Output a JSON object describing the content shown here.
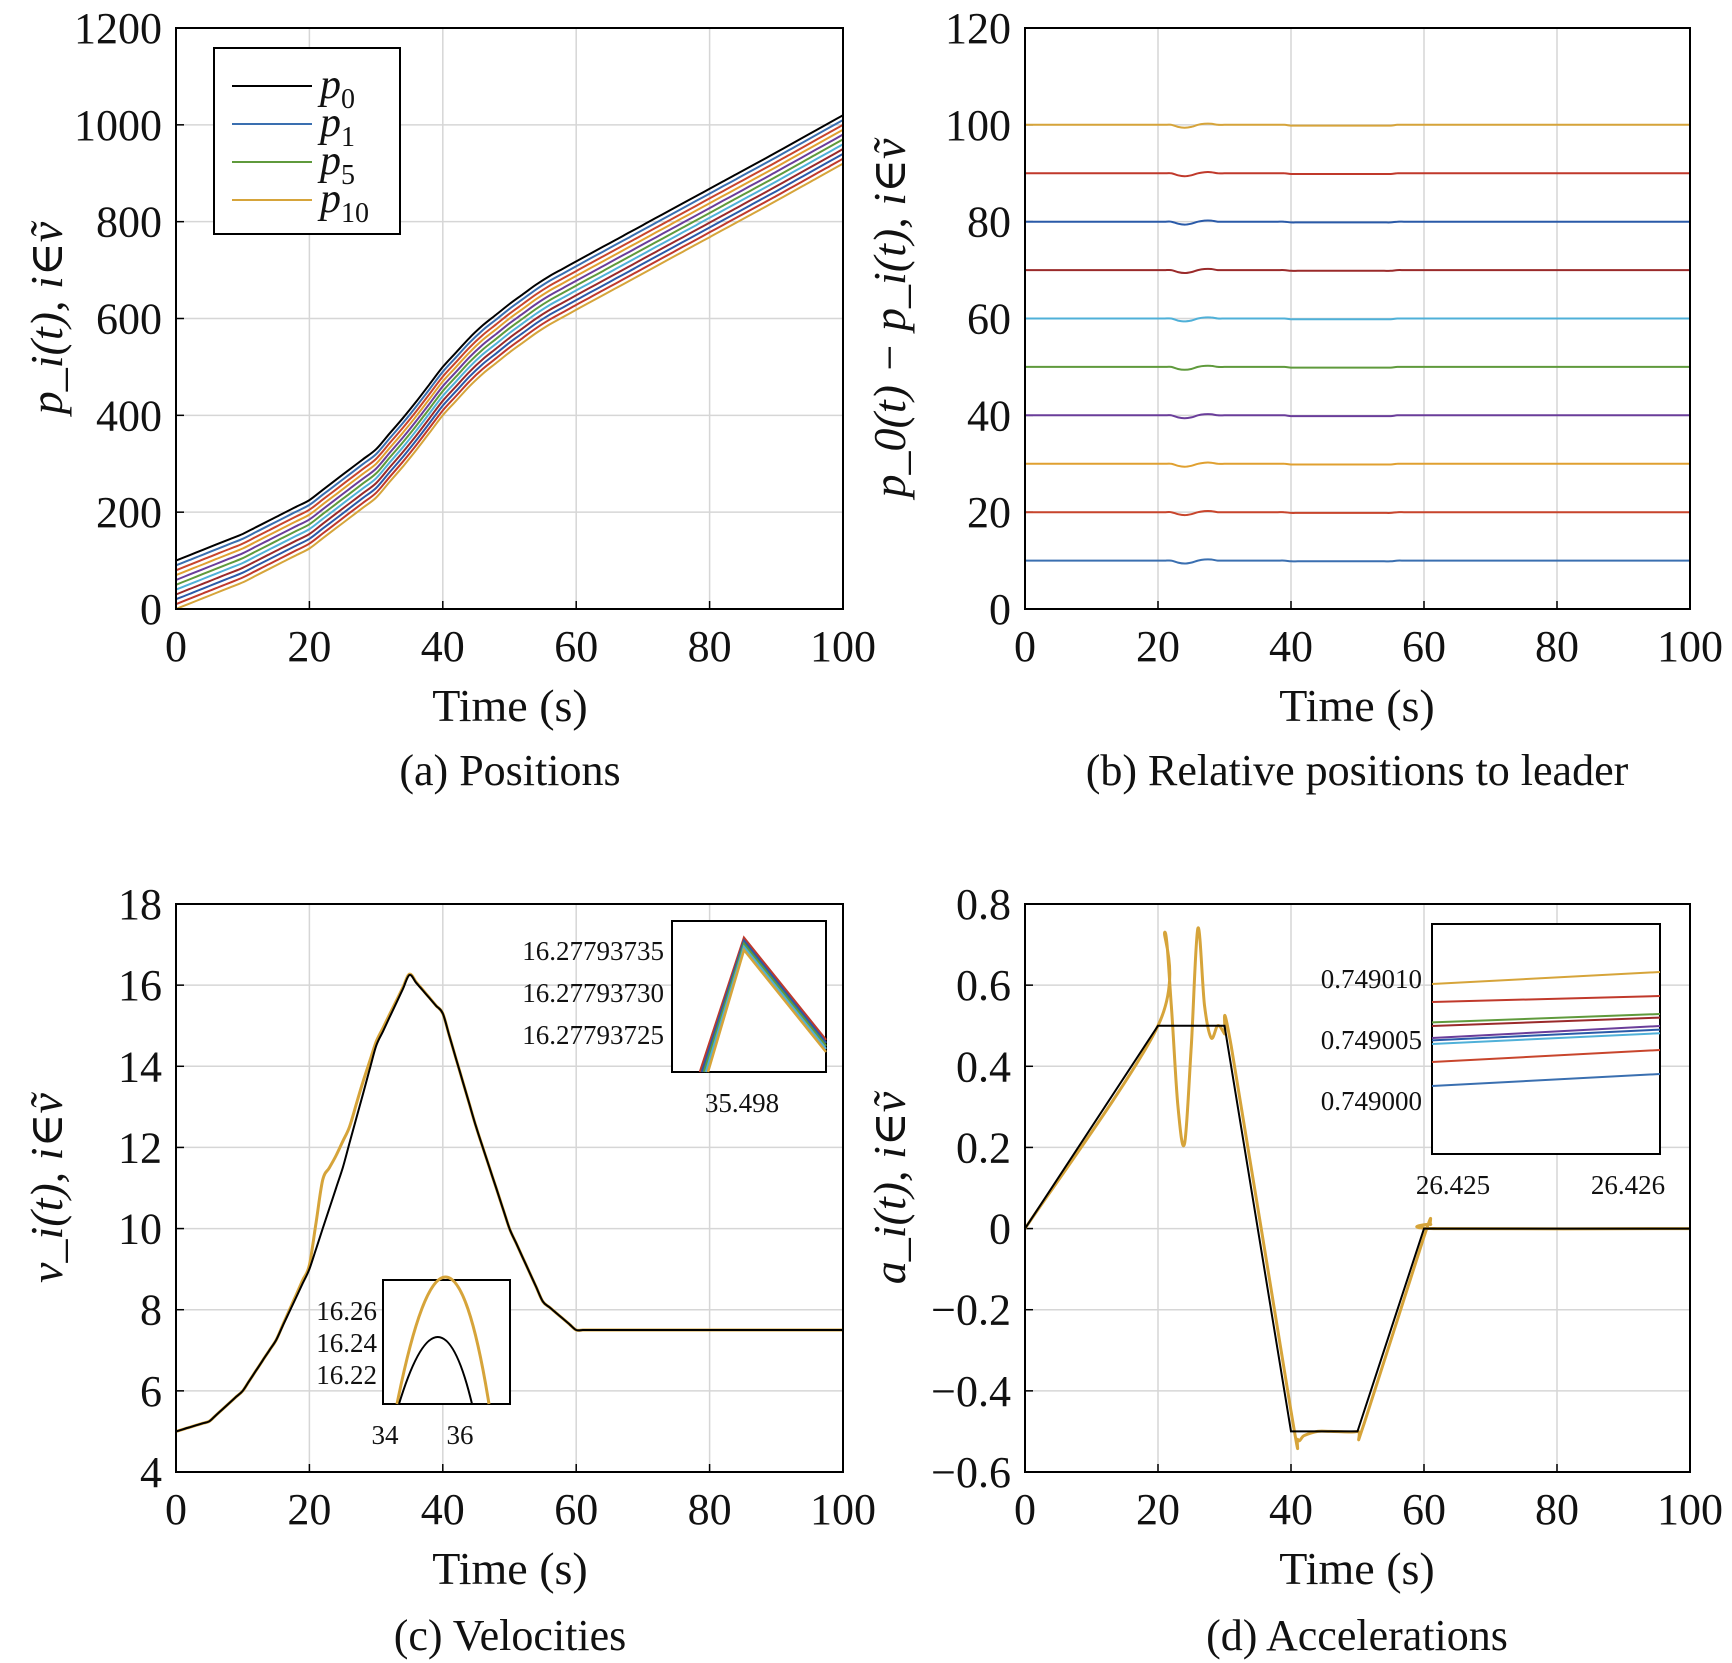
{
  "chart_data": [
    {
      "type": "line",
      "caption": "(a) Positions",
      "xlabel": "Time (s)",
      "ylabel": "p_i(t), i∈ṽ",
      "xlim": [
        0,
        100
      ],
      "ylim": [
        0,
        1200
      ],
      "xticks": [
        "0",
        "20",
        "40",
        "60",
        "80",
        "100"
      ],
      "yticks": [
        "0",
        "200",
        "400",
        "600",
        "800",
        "1000",
        "1200"
      ],
      "grid": true,
      "legend": {
        "position": "top-left",
        "entries": [
          {
            "base": "p",
            "sub": "0",
            "color": "#000000"
          },
          {
            "base": "p",
            "sub": "1",
            "color": "#3a6fb0"
          },
          {
            "base": "p",
            "sub": "5",
            "color": "#5f9a3c"
          },
          {
            "base": "p",
            "sub": "10",
            "color": "#d6a43a"
          }
        ]
      },
      "leader_x": [
        0,
        10,
        20,
        30,
        35,
        40,
        45,
        50,
        55,
        60,
        70,
        80,
        90,
        100
      ],
      "leader_y": [
        100,
        155,
        225,
        330,
        410,
        500,
        575,
        630,
        680,
        718,
        793,
        868,
        943,
        1020
      ],
      "series": [
        {
          "offset": 0,
          "color": "#000000"
        },
        {
          "offset": 10,
          "color": "#3a6fb0"
        },
        {
          "offset": 20,
          "color": "#c8452c"
        },
        {
          "offset": 30,
          "color": "#e0a030"
        },
        {
          "offset": 40,
          "color": "#6a3d9a"
        },
        {
          "offset": 50,
          "color": "#5f9a3c"
        },
        {
          "offset": 60,
          "color": "#4fb0d8"
        },
        {
          "offset": 70,
          "color": "#9a2a2a"
        },
        {
          "offset": 80,
          "color": "#2a5aa8"
        },
        {
          "offset": 90,
          "color": "#c0392b"
        },
        {
          "offset": 100,
          "color": "#d6a43a"
        }
      ]
    },
    {
      "type": "line",
      "caption": "(b) Relative positions to leader",
      "xlabel": "Time (s)",
      "ylabel": "p_0(t) − p_i(t), i∈ṽ",
      "xlim": [
        0,
        100
      ],
      "ylim": [
        0,
        120
      ],
      "xticks": [
        "0",
        "20",
        "40",
        "60",
        "80",
        "100"
      ],
      "yticks": [
        "0",
        "20",
        "40",
        "60",
        "80",
        "100",
        "120"
      ],
      "grid": true,
      "series": [
        {
          "value": 10,
          "color": "#3a6fb0"
        },
        {
          "value": 20,
          "color": "#c8452c"
        },
        {
          "value": 30,
          "color": "#e0a030"
        },
        {
          "value": 40,
          "color": "#6a3d9a"
        },
        {
          "value": 50,
          "color": "#5f9a3c"
        },
        {
          "value": 60,
          "color": "#4fb0d8"
        },
        {
          "value": 70,
          "color": "#9a2a2a"
        },
        {
          "value": 80,
          "color": "#2a5aa8"
        },
        {
          "value": 90,
          "color": "#c0392b"
        },
        {
          "value": 100,
          "color": "#d6a43a"
        }
      ]
    },
    {
      "type": "line",
      "caption": "(c) Velocities",
      "xlabel": "Time (s)",
      "ylabel": "v_i(t), i∈ṽ",
      "xlim": [
        0,
        100
      ],
      "ylim": [
        4,
        18
      ],
      "xticks": [
        "0",
        "20",
        "40",
        "60",
        "80",
        "100"
      ],
      "yticks": [
        "4",
        "6",
        "8",
        "10",
        "12",
        "14",
        "16",
        "18"
      ],
      "grid": true,
      "leader": {
        "x": [
          0,
          5,
          10,
          15,
          20,
          25,
          30,
          35,
          40,
          45,
          50,
          55,
          60,
          70,
          80,
          90,
          100
        ],
        "y": [
          5,
          5.25,
          6,
          7.25,
          9,
          11.5,
          14.5,
          16.25,
          15.3,
          12.5,
          10,
          8.2,
          7.5,
          7.5,
          7.5,
          7.5,
          7.5
        ],
        "color": "#000000"
      },
      "follower": {
        "x": [
          0,
          5,
          10,
          15,
          20,
          22,
          24,
          26,
          28,
          30,
          35,
          40,
          45,
          50,
          55,
          60,
          70,
          80,
          90,
          100
        ],
        "y": [
          5,
          5.25,
          6,
          7.25,
          9.1,
          11.2,
          11.8,
          12.5,
          13.6,
          14.6,
          16.27,
          15.3,
          12.5,
          10,
          8.2,
          7.5,
          7.5,
          7.5,
          7.5,
          7.5
        ],
        "color": "#d6a43a"
      },
      "insets": [
        {
          "name": "zoom-peak-top",
          "xticks": [
            "35.498"
          ],
          "yticks": [
            "16.27793735",
            "16.27793730",
            "16.27793725"
          ],
          "colors": [
            "#c0392b",
            "#2a5aa8",
            "#5f9a3c",
            "#4fb0d8",
            "#d6a43a"
          ]
        },
        {
          "name": "zoom-peak-bottom",
          "xticks": [
            "34",
            "36"
          ],
          "yticks": [
            "16.26",
            "16.24",
            "16.22"
          ],
          "colors": [
            "#d6a43a",
            "#000000"
          ]
        }
      ]
    },
    {
      "type": "line",
      "caption": "(d) Accelerations",
      "xlabel": "Time (s)",
      "ylabel": "a_i(t), i∈ṽ",
      "xlim": [
        0,
        100
      ],
      "ylim": [
        -0.6,
        0.8
      ],
      "xticks": [
        "0",
        "20",
        "40",
        "60",
        "80",
        "100"
      ],
      "yticks": [
        "−0.6",
        "−0.4",
        "−0.2",
        "0",
        "0.2",
        "0.4",
        "0.6",
        "0.8"
      ],
      "grid": true,
      "leader": {
        "x": [
          0,
          20,
          30,
          40,
          50,
          60,
          100
        ],
        "y": [
          0,
          0.5,
          0.5,
          -0.5,
          -0.5,
          0,
          0
        ],
        "color": "#000000"
      },
      "follower": {
        "x": [
          0,
          20,
          21,
          22,
          23,
          24,
          25,
          26,
          27,
          28,
          29,
          30,
          31,
          40,
          41,
          42,
          44,
          46,
          50,
          51,
          60,
          61,
          62,
          100
        ],
        "y": [
          0,
          0.5,
          0.73,
          0.55,
          0.3,
          0.21,
          0.45,
          0.74,
          0.55,
          0.47,
          0.5,
          0.48,
          0.45,
          -0.45,
          -0.52,
          -0.51,
          -0.5,
          -0.5,
          -0.5,
          -0.48,
          -0.02,
          0.01,
          0,
          0
        ],
        "color": "#d6a43a"
      },
      "inset": {
        "name": "zoom-accel",
        "xticks": [
          "26.425",
          "26.426"
        ],
        "yticks": [
          "0.749010",
          "0.749005",
          "0.749000"
        ],
        "lines": [
          {
            "y0": 0.7490095,
            "y1": 0.7490105,
            "color": "#d6a43a"
          },
          {
            "y0": 0.749008,
            "y1": 0.7490085,
            "color": "#c0392b"
          },
          {
            "y0": 0.7490063,
            "y1": 0.749007,
            "color": "#5f9a3c"
          },
          {
            "y0": 0.749006,
            "y1": 0.7490067,
            "color": "#9a2a2a"
          },
          {
            "y0": 0.749005,
            "y1": 0.749006,
            "color": "#6a3d9a"
          },
          {
            "y0": 0.7490048,
            "y1": 0.7490057,
            "color": "#2a5aa8"
          },
          {
            "y0": 0.7490045,
            "y1": 0.7490054,
            "color": "#4fb0d8"
          },
          {
            "y0": 0.749003,
            "y1": 0.749004,
            "color": "#c8452c"
          },
          {
            "y0": 0.749001,
            "y1": 0.749002,
            "color": "#3a6fb0"
          }
        ]
      }
    }
  ]
}
